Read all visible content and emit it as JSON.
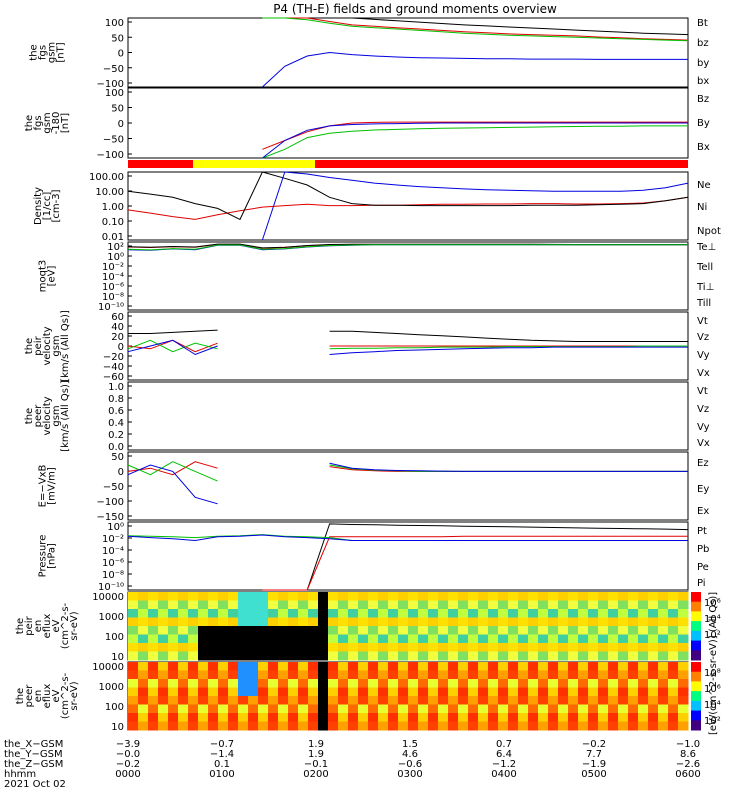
{
  "title": "P4 (TH-E) fields and ground moments overview",
  "date_label": "2021 Oct 02",
  "colors": {
    "black": "#000000",
    "red": "#e00000",
    "green": "#00c000",
    "blue": "#0000e0",
    "yellow": "#ffff00",
    "barred": "#ff0000"
  },
  "chart_data": [
    {
      "id": "fgs",
      "type": "line",
      "ylabel": [
        "the",
        "fgs",
        "gsm",
        "[nT]"
      ],
      "ylim": [
        -100,
        100
      ],
      "yticks": [
        "100",
        "50",
        "0",
        "−50",
        "−100"
      ],
      "series": [
        {
          "name": "Bt",
          "color": "black",
          "values": [
            0,
            0,
            0,
            0,
            0,
            0,
            160,
            140,
            120,
            110,
            100,
            96,
            92,
            88,
            84,
            80,
            77,
            74,
            71,
            68,
            65,
            62,
            59,
            56,
            54,
            52
          ]
        },
        {
          "name": "bz",
          "color": "red",
          "values": [
            0,
            0,
            0,
            0,
            0,
            0,
            150,
            120,
            100,
            90,
            80,
            76,
            72,
            68,
            64,
            60,
            57,
            54,
            52,
            50,
            48,
            45,
            43,
            40,
            38,
            36
          ]
        },
        {
          "name": "by",
          "color": "green",
          "values": [
            0,
            0,
            0,
            0,
            0,
            0,
            140,
            115,
            95,
            85,
            76,
            72,
            68,
            64,
            60,
            56,
            53,
            50,
            48,
            46,
            44,
            42,
            40,
            38,
            36,
            34
          ]
        },
        {
          "name": "bx",
          "color": "blue",
          "values": [
            0,
            0,
            0,
            0,
            0,
            0,
            -120,
            -40,
            -10,
            0,
            -6,
            -10,
            -13,
            -15,
            -16,
            -17,
            -18,
            -18,
            -19,
            -19,
            -19,
            -20,
            -20,
            -20,
            -20,
            -20
          ]
        }
      ]
    },
    {
      "id": "fgs_ext",
      "type": "line",
      "ylabel": [
        "the",
        "fgs",
        "gsm",
        "-180",
        "[nT]"
      ],
      "ylim": [
        -120,
        120
      ],
      "yticks": [
        "100",
        "50",
        "0",
        "−50",
        "−100"
      ],
      "series": [
        {
          "name": "Bz",
          "color": "red",
          "values": [
            0,
            0,
            0,
            0,
            0,
            0,
            -90,
            -60,
            -30,
            -10,
            0,
            2,
            3,
            3,
            3,
            3,
            3,
            3,
            3,
            3,
            3,
            3,
            3,
            3,
            3,
            3
          ]
        },
        {
          "name": "By",
          "color": "green",
          "values": [
            0,
            0,
            0,
            0,
            0,
            0,
            -200,
            -90,
            -50,
            -35,
            -28,
            -24,
            -22,
            -20,
            -18,
            -17,
            -16,
            -15,
            -14,
            -13,
            -12,
            -11,
            -11,
            -10,
            -10,
            -10
          ]
        },
        {
          "name": "Bx",
          "color": "blue",
          "values": [
            0,
            0,
            0,
            0,
            0,
            0,
            -160,
            -60,
            -25,
            -10,
            -5,
            -3,
            -2,
            -1,
            0,
            0,
            0,
            0,
            0,
            0,
            0,
            0,
            0,
            0,
            0,
            0
          ]
        }
      ]
    },
    {
      "id": "density",
      "type": "line",
      "log": true,
      "ylabel": [
        "Density",
        "[1/cc]",
        "[cm-3]"
      ],
      "ylim": [
        0.01,
        200
      ],
      "yticks": [
        "100.00",
        "10.00",
        "1.00",
        "0.10",
        "0.01"
      ],
      "series": [
        {
          "name": "Ne",
          "color": "red",
          "values": [
            0.8,
            0.5,
            0.3,
            0.2,
            0.4,
            0.7,
            1.2,
            1.5,
            1.8,
            1.5,
            1.5,
            1.6,
            1.6,
            1.7,
            1.8,
            1.8,
            1.9,
            1.9,
            2.0,
            2.0,
            1.9,
            1.9,
            2.0,
            2.2,
            3.0,
            5.0
          ]
        },
        {
          "name": "Ni",
          "color": "black",
          "values": [
            12,
            8,
            5,
            2,
            1,
            0.2,
            200,
            80,
            30,
            5,
            2,
            1.6,
            1.6,
            1.5,
            1.5,
            1.5,
            1.5,
            1.5,
            1.6,
            1.6,
            1.6,
            1.7,
            1.8,
            2.0,
            3.0,
            5.0
          ]
        },
        {
          "name": "Npot",
          "color": "blue",
          "values": [
            0,
            0,
            0,
            0,
            0,
            0,
            0,
            200,
            150,
            90,
            60,
            40,
            30,
            24,
            20,
            17,
            15,
            14,
            13,
            12,
            12,
            12,
            12,
            14,
            20,
            40
          ]
        }
      ]
    },
    {
      "id": "temp",
      "type": "line",
      "log": true,
      "ylabel": [
        "moqt3",
        "[eV]"
      ],
      "ylim": [
        1e-11,
        10000.0
      ],
      "yticks": [
        "10²",
        "10⁰",
        "10⁻²",
        "10⁻⁴",
        "10⁻⁶",
        "10⁻⁸",
        "10⁻¹⁰"
      ],
      "series": [
        {
          "name": "Te⊥",
          "color": "red",
          "values": [
            800,
            600,
            900,
            700,
            3000,
            3000,
            400,
            600,
            1500,
            2500,
            3000,
            3000,
            3000,
            3000,
            3000,
            3000,
            3000,
            3000,
            3000,
            2800,
            2500,
            2500,
            2500,
            2500,
            2500,
            2500
          ]
        },
        {
          "name": "Tell",
          "color": "black",
          "values": [
            900,
            700,
            1000,
            800,
            3500,
            3500,
            500,
            700,
            1700,
            2800,
            3300,
            3300,
            3300,
            3300,
            3300,
            3300,
            3300,
            3300,
            3300,
            3000,
            2800,
            2800,
            2800,
            2800,
            2800,
            2800
          ]
        },
        {
          "name": "Ti⊥",
          "color": "blue",
          "values": [
            200,
            150,
            300,
            200,
            2000,
            2000,
            200,
            300,
            800,
            1500,
            2000,
            2500,
            2500,
            2500,
            2500,
            2500,
            2500,
            2500,
            2500,
            2500,
            2500,
            2500,
            2500,
            2500,
            2500,
            2500
          ]
        },
        {
          "name": "Till",
          "color": "green",
          "values": [
            250,
            180,
            350,
            250,
            2200,
            2200,
            250,
            350,
            900,
            1700,
            2200,
            2600,
            2600,
            2600,
            2600,
            2600,
            2600,
            2600,
            2600,
            2600,
            2600,
            2600,
            2600,
            2600,
            2600,
            2600
          ]
        }
      ]
    },
    {
      "id": "peir_vel",
      "type": "line",
      "ylabel": [
        "the",
        "peir",
        "velocity",
        "gsm",
        "[km/s (All Qs)]"
      ],
      "ylim": [
        -60,
        60
      ],
      "yticks": [
        "60",
        "40",
        "20",
        "0",
        "−20",
        "−40",
        "−60"
      ],
      "series": [
        {
          "name": "Vt",
          "color": "black",
          "values": [
            22,
            22,
            24,
            26,
            28,
            null,
            null,
            null,
            null,
            26,
            26,
            24,
            22,
            20,
            18,
            16,
            14,
            12,
            10,
            9,
            8,
            8,
            8,
            8,
            8,
            8
          ]
        },
        {
          "name": "Vz",
          "color": "red",
          "values": [
            0,
            -5,
            10,
            -10,
            5,
            null,
            null,
            null,
            null,
            0,
            0,
            0,
            0,
            0,
            0,
            0,
            0,
            0,
            0,
            0,
            0,
            0,
            0,
            0,
            0,
            0
          ]
        },
        {
          "name": "Vy",
          "color": "green",
          "values": [
            -5,
            10,
            -10,
            5,
            -5,
            null,
            null,
            null,
            null,
            -5,
            -4,
            -4,
            -3,
            -3,
            -2,
            -2,
            -2,
            -1,
            -1,
            -1,
            -1,
            -1,
            -1,
            0,
            0,
            0
          ]
        },
        {
          "name": "Vx",
          "color": "blue",
          "values": [
            -10,
            0,
            10,
            -15,
            0,
            null,
            null,
            null,
            null,
            -15,
            -12,
            -10,
            -8,
            -7,
            -6,
            -5,
            -4,
            -3,
            -3,
            -2,
            -2,
            -2,
            -2,
            -2,
            -2,
            -2
          ]
        }
      ]
    },
    {
      "id": "peer_vel",
      "type": "line",
      "ylabel": [
        "the",
        "peer",
        "velocity",
        "gsm",
        "[km/s (All Qs)]"
      ],
      "ylim": [
        0,
        1
      ],
      "yticks": [
        "1.0",
        "0.8",
        "0.6",
        "0.4",
        "0.2",
        "0.0"
      ],
      "series": [
        {
          "name": "Vt",
          "color": "black",
          "values": []
        },
        {
          "name": "Vz",
          "color": "red",
          "values": []
        },
        {
          "name": "Vy",
          "color": "green",
          "values": []
        },
        {
          "name": "Vx",
          "color": "blue",
          "values": []
        }
      ]
    },
    {
      "id": "efield",
      "type": "line",
      "ylabel": [
        "E=−VxB",
        "[mV/m]"
      ],
      "ylim": [
        -150,
        60
      ],
      "yticks": [
        "50",
        "0",
        "−50",
        "−100",
        "−150"
      ],
      "series": [
        {
          "name": "Ez",
          "color": "red",
          "values": [
            0,
            10,
            -10,
            30,
            10,
            null,
            null,
            null,
            null,
            15,
            5,
            2,
            0,
            0,
            0,
            0,
            0,
            0,
            0,
            0,
            0,
            0,
            0,
            0,
            0,
            0
          ]
        },
        {
          "name": "Ey",
          "color": "green",
          "values": [
            20,
            -10,
            30,
            0,
            -30,
            null,
            null,
            null,
            null,
            20,
            8,
            4,
            2,
            0,
            0,
            0,
            0,
            0,
            0,
            0,
            0,
            0,
            0,
            0,
            0,
            0
          ]
        },
        {
          "name": "Ex",
          "color": "blue",
          "values": [
            -10,
            20,
            0,
            -80,
            -100,
            null,
            null,
            null,
            null,
            25,
            10,
            5,
            3,
            2,
            1,
            0,
            0,
            0,
            0,
            0,
            0,
            0,
            0,
            0,
            0,
            0
          ]
        }
      ]
    },
    {
      "id": "pressure",
      "type": "line",
      "log": true,
      "ylabel": [
        "Pressure",
        "[nPa]"
      ],
      "ylim": [
        1e-10,
        10
      ],
      "yticks": [
        "10⁰",
        "10⁻²",
        "10⁻⁴",
        "10⁻⁶",
        "10⁻⁸",
        "10⁻¹⁰"
      ],
      "series": [
        {
          "name": "Pt",
          "color": "black",
          "values": [
            0,
            0,
            0,
            0,
            0,
            0,
            0,
            0,
            0,
            5,
            4,
            3.5,
            3,
            2.7,
            2.4,
            2.1,
            1.9,
            1.7,
            1.5,
            1.3,
            1.1,
            1.0,
            0.9,
            0.8,
            0.7,
            0.6
          ]
        },
        {
          "name": "Pb",
          "color": "red",
          "values": [
            0,
            0,
            0,
            0,
            0,
            0,
            0,
            0,
            0,
            0.04,
            0.04,
            0.04,
            0.04,
            0.04,
            0.04,
            0.05,
            0.05,
            0.05,
            0.05,
            0.05,
            0.05,
            0.05,
            0.05,
            0.05,
            0.05,
            0.05
          ]
        },
        {
          "name": "Pe",
          "color": "green",
          "values": [
            0.06,
            0.05,
            0.04,
            0.03,
            0.05,
            0.06,
            0.09,
            0.05,
            0.04,
            0.03,
            0.01,
            0.01,
            0.01,
            0.01,
            0.01,
            0.01,
            0.01,
            0.01,
            0.01,
            0.01,
            0.01,
            0.01,
            0.01,
            0.01,
            0.01,
            0.01
          ]
        },
        {
          "name": "Pi",
          "color": "blue",
          "values": [
            0.05,
            0.03,
            0.02,
            0.01,
            0.04,
            0.05,
            0.08,
            0.04,
            0.03,
            0.02,
            0.01,
            0.01,
            0.01,
            0.01,
            0.01,
            0.01,
            0.01,
            0.01,
            0.01,
            0.01,
            0.01,
            0.01,
            0.01,
            0.01,
            0.01,
            0.01
          ]
        }
      ]
    },
    {
      "id": "peir_en",
      "type": "heatmap",
      "ylabel": [
        "the",
        "peir",
        "en",
        "eflux",
        "eV",
        "(cm^2-s-",
        "sr-eV)"
      ],
      "yticks": [
        "10000",
        "1000",
        "100",
        "10"
      ],
      "colorbar_ticks": [
        "10⁶",
        "10⁴",
        "10²"
      ]
    },
    {
      "id": "peer_en",
      "type": "heatmap",
      "ylabel": [
        "the",
        "peer",
        "en",
        "eflux",
        "eV",
        "(cm^2-s-",
        "sr-eV)"
      ],
      "yticks": [
        "10000",
        "1000",
        "100",
        "10"
      ],
      "colorbar_ticks": [
        "10⁸",
        "10⁶",
        "10⁴",
        "10²"
      ]
    }
  ],
  "colorbar_label": "[eV/(cm^2-s-sr-eV)] (All Qs)]",
  "xaxis": {
    "rows": [
      {
        "label": "the_X−GSM",
        "values": [
          "−3.9",
          "−0.7",
          "1.9",
          "1.5",
          "0.7",
          "−0.2",
          "−1.0"
        ]
      },
      {
        "label": "the_Y−GSM",
        "values": [
          "−0.0",
          "−1.4",
          "1.9",
          "4.6",
          "6.4",
          "7.7",
          "8.6"
        ]
      },
      {
        "label": "the_Z−GSM",
        "values": [
          "−0.2",
          "0.1",
          "−0.1",
          "−0.6",
          "−1.2",
          "−1.9",
          "−2.6"
        ]
      },
      {
        "label": "hhmm",
        "values": [
          "0000",
          "0100",
          "0200",
          "0300",
          "0400",
          "0500",
          "0600"
        ]
      }
    ]
  }
}
